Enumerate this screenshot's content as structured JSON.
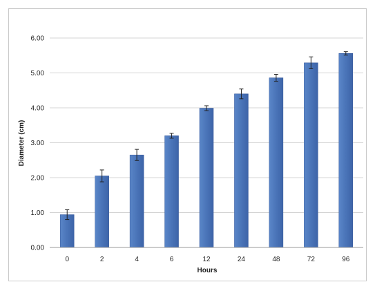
{
  "chart_data": {
    "type": "bar",
    "title": "",
    "xlabel": "Hours",
    "ylabel": "Diameter (cm)",
    "categories": [
      "0",
      "2",
      "4",
      "6",
      "12",
      "24",
      "48",
      "72",
      "96"
    ],
    "values": [
      0.94,
      2.05,
      2.65,
      3.2,
      3.99,
      4.4,
      4.86,
      5.29,
      5.56
    ],
    "errors": [
      0.14,
      0.17,
      0.16,
      0.07,
      0.07,
      0.14,
      0.1,
      0.17,
      0.05
    ],
    "ylim": [
      0,
      6
    ],
    "yticks": [
      "0.00",
      "1.00",
      "2.00",
      "3.00",
      "4.00",
      "5.00",
      "6.00"
    ],
    "grid": true,
    "legend": "none",
    "colors": {
      "bar": "#4a74b8",
      "bar_edge": "#35579a",
      "grid": "#d4d4d4",
      "error": "#222222"
    }
  }
}
